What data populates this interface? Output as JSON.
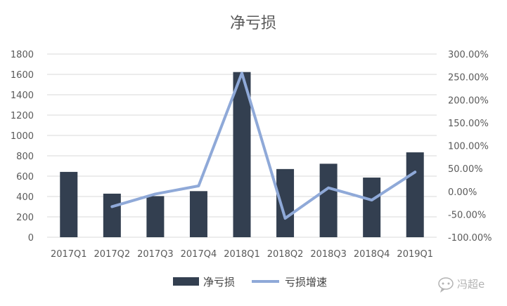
{
  "chart_data": {
    "type": "bar",
    "title": "净亏损",
    "categories": [
      "2017Q1",
      "2017Q2",
      "2017Q3",
      "2017Q4",
      "2018Q1",
      "2018Q2",
      "2018Q3",
      "2018Q4",
      "2019Q1"
    ],
    "series": [
      {
        "name": "净亏损",
        "type": "bar",
        "axis": "left",
        "values": [
          642,
          428,
          404,
          453,
          1623,
          670,
          722,
          586,
          834
        ]
      },
      {
        "name": "亏损增速",
        "type": "line",
        "axis": "right",
        "values": [
          null,
          -0.333,
          -0.056,
          0.121,
          2.583,
          -0.587,
          0.078,
          -0.188,
          0.423
        ]
      }
    ],
    "y_left": {
      "min": 0,
      "max": 1800,
      "step": 200,
      "tick_labels": [
        "0",
        "200",
        "400",
        "600",
        "800",
        "1000",
        "1200",
        "1400",
        "1600",
        "1800"
      ]
    },
    "y_right": {
      "min": -1.0,
      "max": 3.0,
      "step": 0.5,
      "tick_labels": [
        "-100.00%",
        "-50.00%",
        "0.00%",
        "50.00%",
        "100.00%",
        "150.00%",
        "200.00%",
        "250.00%",
        "300.00%"
      ]
    },
    "legend": {
      "position": "bottom"
    },
    "grid": true,
    "colors": {
      "bar": "#333f50",
      "line": "#8fa9d8",
      "grid": "#d9d9d9",
      "text": "#595959"
    }
  },
  "watermark": {
    "text": "冯超e"
  }
}
